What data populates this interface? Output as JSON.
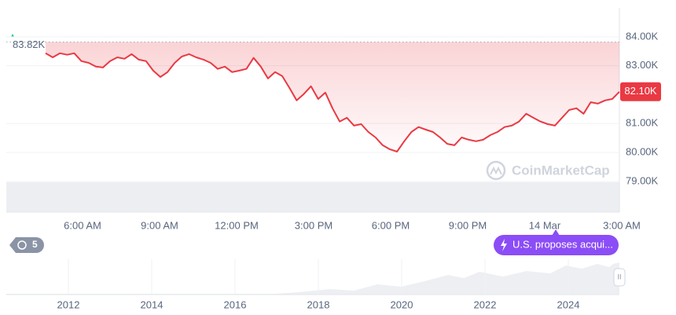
{
  "chart_data": {
    "type": "line",
    "series": [
      {
        "color": "#ea3943",
        "values": [
          83430,
          83290,
          83430,
          83380,
          83430,
          83160,
          83100,
          82970,
          82940,
          83160,
          83290,
          83240,
          83400,
          83210,
          83160,
          82830,
          82610,
          82780,
          83100,
          83320,
          83400,
          83290,
          83210,
          83100,
          82890,
          82970,
          82780,
          82830,
          82890,
          83270,
          82970,
          82560,
          82780,
          82640,
          82230,
          81800,
          82020,
          82290,
          81850,
          82070,
          81530,
          81070,
          81200,
          80930,
          80980,
          80710,
          80520,
          80250,
          80110,
          80030,
          80390,
          80710,
          80880,
          80790,
          80710,
          80520,
          80300,
          80250,
          80520,
          80440,
          80390,
          80440,
          80600,
          80710,
          80880,
          80930,
          81070,
          81340,
          81200,
          81070,
          80980,
          80930,
          81200,
          81470,
          81530,
          81340,
          81740,
          81690,
          81800,
          81850,
          82100
        ]
      }
    ],
    "xticks": [
      "6:00 AM",
      "9:00 AM",
      "12:00 PM",
      "3:00 PM",
      "6:00 PM",
      "9:00 PM",
      "14 Mar",
      "3:00 AM"
    ],
    "ylim": [
      77940,
      85000
    ],
    "yticks": [
      {
        "value": 84000,
        "label": "84.00K"
      },
      {
        "value": 83000,
        "label": "83.00K"
      },
      {
        "value": 81000,
        "label": "81.00K"
      },
      {
        "value": 80000,
        "label": "80.00K"
      },
      {
        "value": 79000,
        "label": "79.00K"
      }
    ],
    "grid": true,
    "reference_line": {
      "value": 83820,
      "label": "83.82K"
    },
    "price_tag": {
      "value": 82100,
      "label": "82.10K"
    },
    "navigator_years": [
      "2012",
      "2014",
      "2016",
      "2018",
      "2020",
      "2022",
      "2024"
    ]
  },
  "ui": {
    "history_count": 5,
    "news": "U.S. proposes acqui...",
    "watermark": "CoinMarketCap",
    "handle": "II"
  }
}
